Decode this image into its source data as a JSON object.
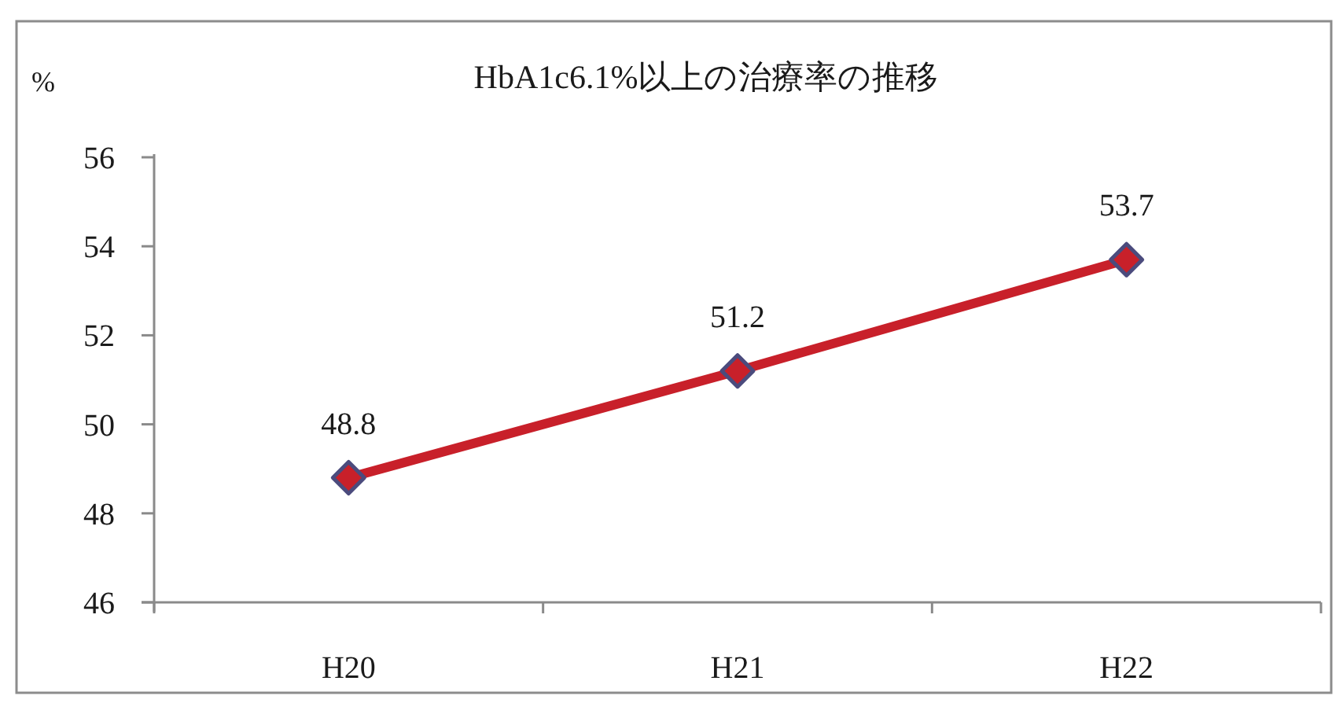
{
  "chart_data": {
    "type": "line",
    "title": "HbA1c6.1%以上の治療率の推移",
    "ylabel": "%",
    "categories": [
      "H20",
      "H21",
      "H22"
    ],
    "series": [
      {
        "color": "#c8202a",
        "values": [
          48.8,
          51.2,
          53.7
        ]
      }
    ],
    "ylim": [
      46,
      56
    ],
    "yticks": [
      46,
      48,
      50,
      52,
      54,
      56
    ],
    "data_labels": true,
    "marker": "diamond",
    "line_style": "solid"
  }
}
